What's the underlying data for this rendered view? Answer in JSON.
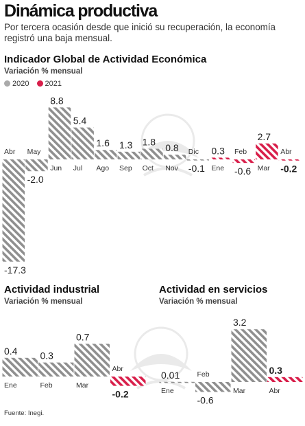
{
  "header": {
    "title": "Dinámica productiva",
    "subtitle": "Por tercera ocasión desde que inició su recuperación, la economía registró una baja mensual."
  },
  "source": "Fuente: Inegi.",
  "colors": {
    "y2020": "#999999",
    "y2021": "#d81e4a",
    "text": "#222222"
  },
  "legend": [
    {
      "label": "2020",
      "color": "#aaaaaa"
    },
    {
      "label": "2021",
      "color": "#d81e4a"
    }
  ],
  "chart_data": [
    {
      "type": "bar",
      "title": "Indicador Global de Actividad Económica",
      "ylabel": "Variación % mensual",
      "categories": [
        "Abr",
        "May",
        "Jun",
        "Jul",
        "Ago",
        "Sep",
        "Oct",
        "Nov",
        "Dic",
        "Ene",
        "Feb",
        "Mar",
        "Abr"
      ],
      "values": [
        -17.3,
        -2.0,
        8.8,
        5.4,
        1.6,
        1.3,
        1.8,
        0.8,
        -0.1,
        0.3,
        -0.6,
        2.7,
        -0.2
      ],
      "value_labels": [
        "-17.3",
        "-2.0",
        "8.8",
        "5.4",
        "1.6",
        "1.3",
        "1.8",
        "0.8",
        "-0.1",
        "0.3",
        "-0.6",
        "2.7",
        "-0.2"
      ],
      "years": [
        "2020",
        "2020",
        "2020",
        "2020",
        "2020",
        "2020",
        "2020",
        "2020",
        "2020",
        "2021",
        "2021",
        "2021",
        "2021"
      ],
      "grid": false,
      "legend_position": "top-left"
    },
    {
      "type": "bar",
      "title": "Actividad industrial",
      "ylabel": "Variación % mensual",
      "categories": [
        "Ene",
        "Feb",
        "Mar",
        "Abr"
      ],
      "values": [
        0.4,
        0.3,
        0.7,
        -0.2
      ],
      "value_labels": [
        "0.4",
        "0.3",
        "0.7",
        "-0.2"
      ],
      "years": [
        "2021",
        "2021",
        "2021",
        "2021"
      ],
      "highlight": [
        false,
        false,
        false,
        true
      ],
      "grid": false
    },
    {
      "type": "bar",
      "title": "Actividad en servicios",
      "ylabel": "Variación % mensual",
      "categories": [
        "Ene",
        "Feb",
        "Mar",
        "Abr"
      ],
      "values": [
        0.01,
        -0.6,
        3.2,
        0.3
      ],
      "value_labels": [
        "0.01",
        "-0.6",
        "3.2",
        "0.3"
      ],
      "years": [
        "2021",
        "2021",
        "2021",
        "2021"
      ],
      "highlight": [
        false,
        false,
        false,
        true
      ],
      "grid": false
    }
  ]
}
